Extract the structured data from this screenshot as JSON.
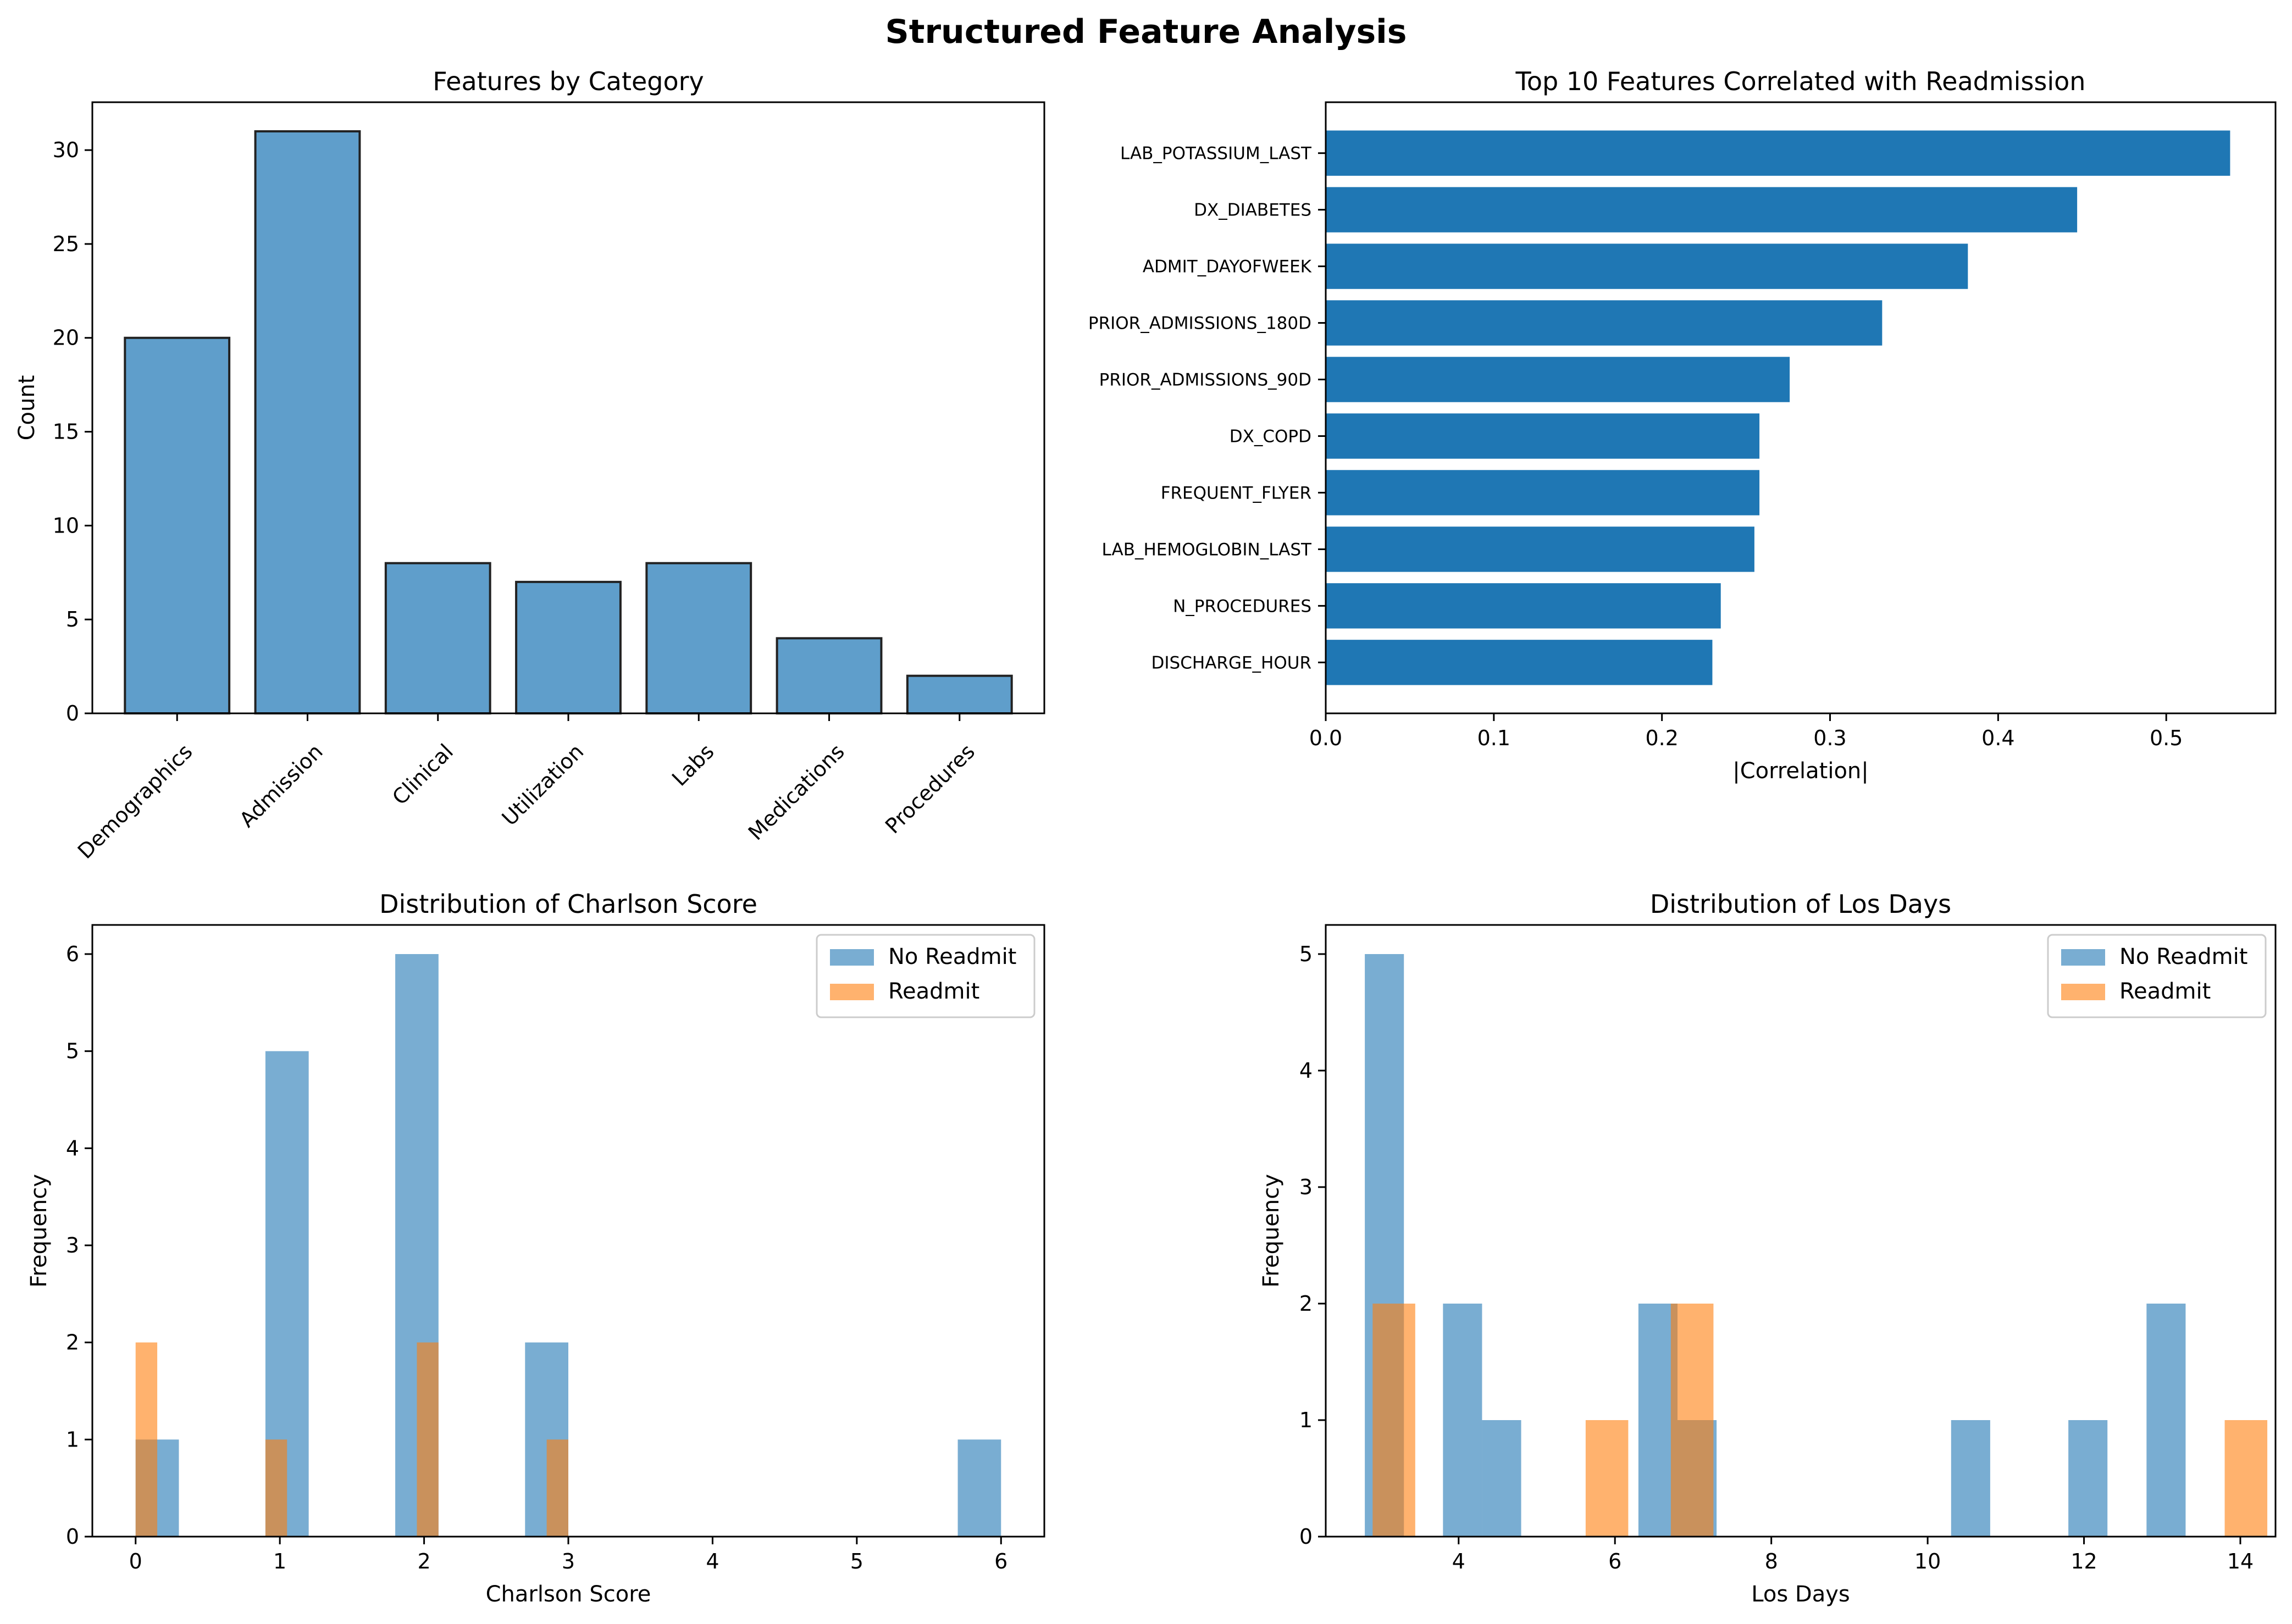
{
  "figure": {
    "title": "Structured Feature Analysis"
  },
  "chart_data": [
    {
      "type": "bar",
      "title": "Features by Category",
      "xlabel": "",
      "ylabel": "Count",
      "categories": [
        "Demographics",
        "Admission",
        "Clinical",
        "Utilization",
        "Labs",
        "Medications",
        "Procedures"
      ],
      "values": [
        20,
        31,
        8,
        7,
        8,
        4,
        2
      ],
      "ylim": [
        0,
        32.55
      ],
      "yticks": [
        0,
        5,
        10,
        15,
        20,
        25,
        30
      ],
      "color": "#5f9ecb",
      "edgecolor": "#222222",
      "grid": false
    },
    {
      "type": "bar",
      "orientation": "horizontal",
      "title": "Top 10 Features Correlated with Readmission",
      "xlabel": "|Correlation|",
      "ylabel": "",
      "categories": [
        "LAB_POTASSIUM_LAST",
        "DX_DIABETES",
        "ADMIT_DAYOFWEEK",
        "PRIOR_ADMISSIONS_180D",
        "PRIOR_ADMISSIONS_90D",
        "DX_COPD",
        "FREQUENT_FLYER",
        "LAB_HEMOGLOBIN_LAST",
        "N_PROCEDURES",
        "DISCHARGE_HOUR"
      ],
      "values": [
        0.538,
        0.447,
        0.382,
        0.331,
        0.276,
        0.258,
        0.258,
        0.255,
        0.235,
        0.23
      ],
      "xlim": [
        0,
        0.565
      ],
      "xticks": [
        "0.0",
        "0.1",
        "0.2",
        "0.3",
        "0.4",
        "0.5"
      ],
      "color": "#1f77b4",
      "grid": false
    },
    {
      "type": "histogram",
      "title": "Distribution of Charlson Score",
      "xlabel": "Charlson Score",
      "ylabel": "Frequency",
      "xlim": [
        -0.3,
        6.3
      ],
      "ylim": [
        0,
        6.3
      ],
      "xticks": [
        0,
        1,
        2,
        3,
        4,
        5,
        6
      ],
      "yticks": [
        0,
        1,
        2,
        3,
        4,
        5,
        6
      ],
      "legend_position": "top-right",
      "series": [
        {
          "name": "No Readmit",
          "color": "#1f77b4",
          "alpha": 0.6,
          "bin_start": 0,
          "bin_width": 0.3,
          "counts": [
            1,
            0,
            0,
            5,
            0,
            0,
            6,
            0,
            0,
            2,
            0,
            0,
            0,
            0,
            0,
            0,
            0,
            0,
            0,
            1
          ]
        },
        {
          "name": "Readmit",
          "color": "#ff7f0e",
          "alpha": 0.6,
          "bin_start": 0,
          "bin_width": 0.15,
          "counts": [
            2,
            0,
            0,
            0,
            0,
            0,
            1,
            0,
            0,
            0,
            0,
            0,
            0,
            2,
            0,
            0,
            0,
            0,
            0,
            1
          ]
        }
      ],
      "grid": false
    },
    {
      "type": "histogram",
      "title": "Distribution of Los Days",
      "xlabel": "Los Days",
      "ylabel": "Frequency",
      "xlim": [
        2.3,
        14.45
      ],
      "ylim": [
        0,
        5.25
      ],
      "xticks": [
        4,
        6,
        8,
        10,
        12,
        14
      ],
      "yticks": [
        0,
        1,
        2,
        3,
        4,
        5
      ],
      "legend_position": "top-right",
      "series": [
        {
          "name": "No Readmit",
          "color": "#1f77b4",
          "alpha": 0.6,
          "bin_start": 2.8,
          "bin_width": 0.5,
          "counts": [
            5,
            0,
            2,
            1,
            0,
            0,
            0,
            2,
            1,
            0,
            0,
            0,
            0,
            0,
            0,
            1,
            0,
            0,
            1,
            0,
            2
          ]
        },
        {
          "name": "Readmit",
          "color": "#ff7f0e",
          "alpha": 0.6,
          "bin_start": 2.9,
          "bin_width": 0.545,
          "counts": [
            2,
            0,
            0,
            0,
            0,
            1,
            0,
            2,
            0,
            0,
            0,
            0,
            0,
            0,
            0,
            0,
            0,
            0,
            0,
            0,
            1
          ]
        }
      ],
      "grid": false
    }
  ]
}
